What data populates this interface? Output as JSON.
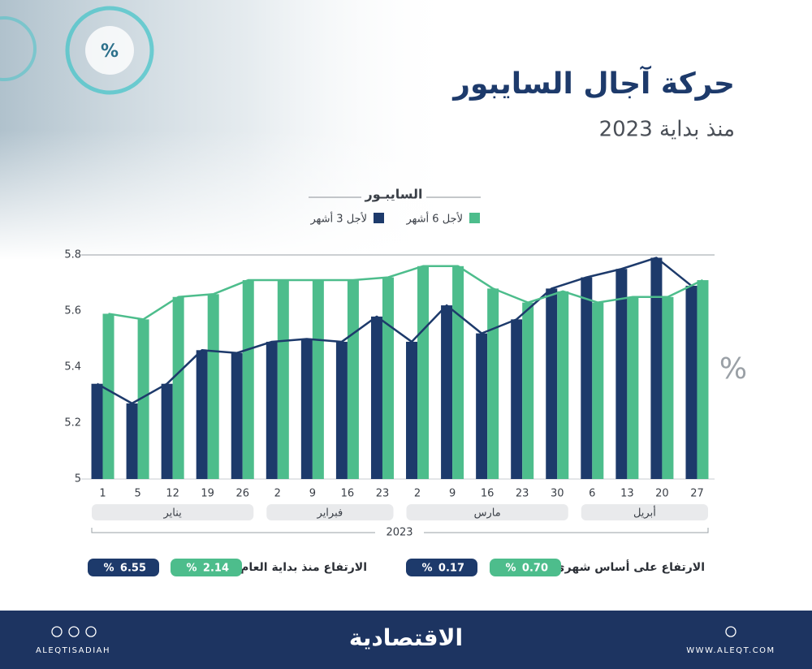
{
  "chart_data": {
    "type": "bar-line",
    "title": "حركة آجال السايبور",
    "subtitle": "منذ بداية 2023",
    "legend_title": "السايبـور",
    "y_unit": "%",
    "categories": [
      "1",
      "5",
      "12",
      "19",
      "26",
      "2",
      "9",
      "16",
      "23",
      "2",
      "9",
      "16",
      "23",
      "30",
      "6",
      "13",
      "20",
      "27"
    ],
    "months": [
      "يناير",
      "يناير",
      "يناير",
      "يناير",
      "يناير",
      "فبراير",
      "فبراير",
      "فبراير",
      "فبراير",
      "مارس",
      "مارس",
      "مارس",
      "مارس",
      "مارس",
      "أبريل",
      "أبريل",
      "أبريل",
      "أبريل"
    ],
    "year": "2023",
    "series": [
      {
        "name": "لأجل 3 أشهر",
        "color": "#1d3a6b",
        "values": [
          5.34,
          5.27,
          5.34,
          5.46,
          5.45,
          5.49,
          5.5,
          5.49,
          5.58,
          5.49,
          5.62,
          5.52,
          5.57,
          5.68,
          5.72,
          5.75,
          5.79,
          5.69
        ]
      },
      {
        "name": "لأجل 6 أشهر",
        "color": "#4dbd8c",
        "values": [
          5.59,
          5.57,
          5.65,
          5.66,
          5.71,
          5.71,
          5.71,
          5.71,
          5.72,
          5.76,
          5.76,
          5.68,
          5.63,
          5.67,
          5.63,
          5.65,
          5.65,
          5.71
        ]
      }
    ],
    "ylim": [
      5,
      5.8
    ],
    "yticks": [
      5,
      5.2,
      5.4,
      5.6,
      5.8
    ],
    "stats": [
      {
        "label": "الارتفاع على أساس شهري",
        "unit": "%",
        "values": [
          0.17,
          0.7
        ],
        "value_labels": [
          "0.17",
          "0.70"
        ]
      },
      {
        "label": "الارتفاع منذ بداية العام",
        "unit": "%",
        "values": [
          6.55,
          2.14
        ],
        "value_labels": [
          "6.55",
          "2.14"
        ]
      }
    ]
  },
  "footer": {
    "logo": "الاقتصادية",
    "left": "ALEQTISADIAH",
    "right": "WWW.ALEQT.COM"
  }
}
